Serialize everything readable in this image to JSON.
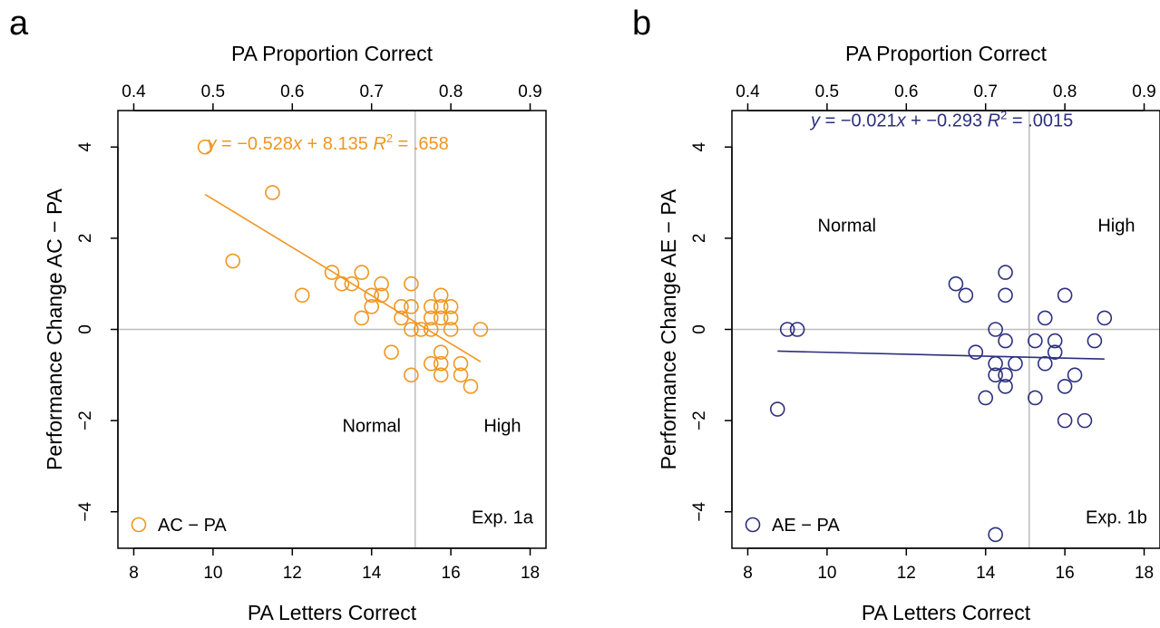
{
  "chart_data": [
    {
      "type": "scatter",
      "panel_letter": "a",
      "xlabel": "PA Letters Correct",
      "x2label": "PA Proportion Correct",
      "ylabel": "Performance Change AC − PA",
      "xlim": [
        7.6,
        18.4
      ],
      "ylim": [
        -4.8,
        4.8
      ],
      "x_ticks": [
        8,
        10,
        12,
        14,
        16,
        18
      ],
      "x_tick_labels": [
        "8",
        "10",
        "12",
        "14",
        "16",
        "18"
      ],
      "x2_ticks": [
        0.4,
        0.5,
        0.6,
        0.7,
        0.8,
        0.9
      ],
      "x2_tick_labels": [
        "0.4",
        "0.5",
        "0.6",
        "0.7",
        "0.8",
        "0.9"
      ],
      "x2_scale_divisor": 20,
      "y_ticks": [
        -4,
        -2,
        0,
        2,
        4
      ],
      "y_tick_labels": [
        "−4",
        "−2",
        "0",
        "2",
        "4"
      ],
      "color": "#f0961e",
      "series": [
        {
          "name": "AC − PA",
          "points": [
            [
              9.8,
              4.0
            ],
            [
              10.5,
              1.5
            ],
            [
              11.5,
              3.0
            ],
            [
              12.25,
              0.75
            ],
            [
              13.0,
              1.25
            ],
            [
              13.25,
              1.0
            ],
            [
              13.5,
              1.0
            ],
            [
              13.75,
              1.25
            ],
            [
              13.75,
              0.25
            ],
            [
              14.0,
              0.75
            ],
            [
              14.0,
              0.5
            ],
            [
              14.25,
              1.0
            ],
            [
              14.25,
              0.75
            ],
            [
              14.5,
              -0.5
            ],
            [
              14.75,
              0.5
            ],
            [
              14.75,
              0.25
            ],
            [
              15.0,
              1.0
            ],
            [
              15.0,
              0.5
            ],
            [
              15.0,
              0.0
            ],
            [
              15.0,
              -1.0
            ],
            [
              15.25,
              0.0
            ],
            [
              15.5,
              0.5
            ],
            [
              15.5,
              0.25
            ],
            [
              15.5,
              0.0
            ],
            [
              15.5,
              -0.75
            ],
            [
              15.75,
              0.75
            ],
            [
              15.75,
              0.5
            ],
            [
              15.75,
              0.25
            ],
            [
              15.75,
              -0.5
            ],
            [
              15.75,
              -0.75
            ],
            [
              15.75,
              -1.0
            ],
            [
              16.0,
              0.5
            ],
            [
              16.0,
              0.25
            ],
            [
              16.0,
              0.0
            ],
            [
              16.25,
              -0.75
            ],
            [
              16.25,
              -1.0
            ],
            [
              16.5,
              -1.25
            ],
            [
              16.75,
              0.0
            ]
          ]
        }
      ],
      "fit_line": {
        "x": [
          9.8,
          16.75
        ],
        "slope": -0.528,
        "intercept": 8.135
      },
      "equation": {
        "y": "y",
        "rest1": " = −0.528",
        "x": "x",
        "rest2": " + 8.135  ",
        "r": "R",
        "sup": "2",
        "rest3": " = .658"
      },
      "cutoff": {
        "x": 15.1,
        "y": 0
      },
      "annotations": {
        "normal": "Normal",
        "high": "High",
        "exp": "Exp. 1a"
      },
      "annotation_pos": {
        "normal": [
          14,
          -2.25
        ],
        "high": [
          17.3,
          -2.25
        ],
        "exp": [
          17.3,
          -4.25
        ],
        "eq": [
          12.9,
          3.95
        ]
      }
    },
    {
      "type": "scatter",
      "panel_letter": "b",
      "xlabel": "PA Letters Correct",
      "x2label": "PA Proportion Correct",
      "ylabel": "Performance Change AE − PA",
      "xlim": [
        7.6,
        18.4
      ],
      "ylim": [
        -4.8,
        4.8
      ],
      "x_ticks": [
        8,
        10,
        12,
        14,
        16,
        18
      ],
      "x_tick_labels": [
        "8",
        "10",
        "12",
        "14",
        "16",
        "18"
      ],
      "x2_ticks": [
        0.4,
        0.5,
        0.6,
        0.7,
        0.8,
        0.9
      ],
      "x2_tick_labels": [
        "0.4",
        "0.5",
        "0.6",
        "0.7",
        "0.8",
        "0.9"
      ],
      "x2_scale_divisor": 20,
      "y_ticks": [
        -4,
        -2,
        0,
        2,
        4
      ],
      "y_tick_labels": [
        "−4",
        "−2",
        "0",
        "2",
        "4"
      ],
      "color": "#2b2f7e",
      "series": [
        {
          "name": "AE − PA",
          "points": [
            [
              8.75,
              -1.75
            ],
            [
              9.0,
              0.0
            ],
            [
              9.25,
              0.0
            ],
            [
              13.25,
              1.0
            ],
            [
              13.5,
              0.75
            ],
            [
              13.75,
              -0.5
            ],
            [
              14.0,
              -1.5
            ],
            [
              14.25,
              0.0
            ],
            [
              14.25,
              -0.75
            ],
            [
              14.25,
              -1.0
            ],
            [
              14.25,
              -4.5
            ],
            [
              14.5,
              1.25
            ],
            [
              14.5,
              0.75
            ],
            [
              14.5,
              -0.25
            ],
            [
              14.5,
              -1.0
            ],
            [
              14.5,
              -1.25
            ],
            [
              14.75,
              -0.75
            ],
            [
              15.25,
              -0.25
            ],
            [
              15.25,
              -1.5
            ],
            [
              15.5,
              0.25
            ],
            [
              15.5,
              -0.75
            ],
            [
              15.75,
              -0.25
            ],
            [
              15.75,
              -0.5
            ],
            [
              16.0,
              0.75
            ],
            [
              16.0,
              -1.25
            ],
            [
              16.0,
              -2.0
            ],
            [
              16.25,
              -1.0
            ],
            [
              16.5,
              -2.0
            ],
            [
              16.75,
              -0.25
            ],
            [
              17.0,
              0.25
            ]
          ]
        }
      ],
      "fit_line": {
        "x": [
          8.75,
          17.0
        ],
        "slope": -0.021,
        "intercept": -0.293
      },
      "equation": {
        "y": "y",
        "rest1": " = −0.021",
        "x": "x",
        "rest2": " + −0.293  ",
        "r": "R",
        "sup": "2",
        "rest3": " = .0015"
      },
      "cutoff": {
        "x": 15.1,
        "y": 0
      },
      "annotations": {
        "normal": "Normal",
        "high": "High",
        "exp": "Exp. 1b"
      },
      "annotation_pos": {
        "normal": [
          10.5,
          2.15
        ],
        "high": [
          17.3,
          2.15
        ],
        "exp": [
          17.3,
          -4.25
        ],
        "eq": [
          12.9,
          4.45
        ]
      }
    }
  ]
}
